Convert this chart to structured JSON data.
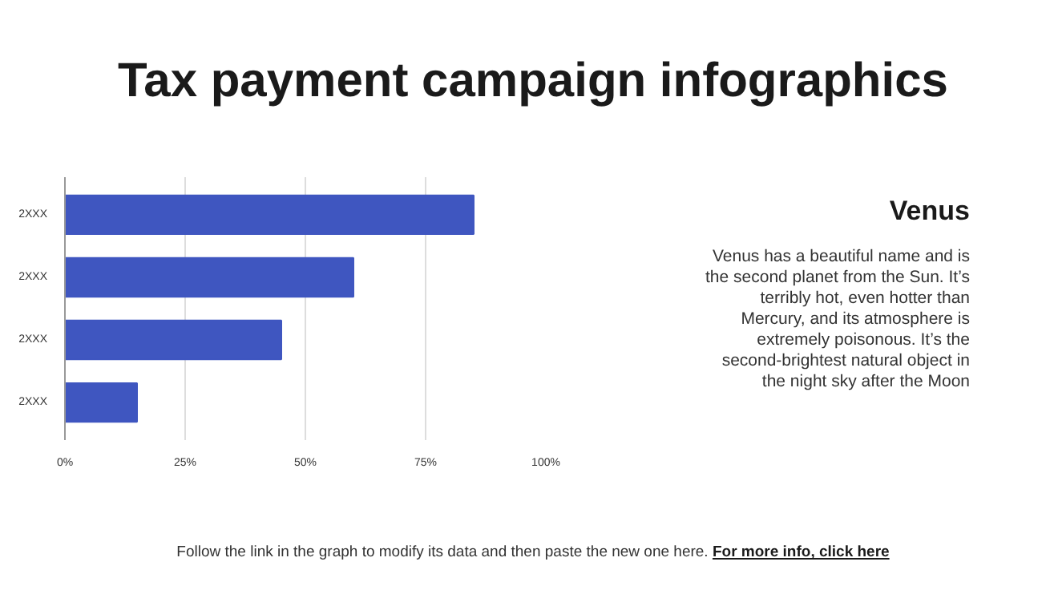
{
  "chart_data": {
    "type": "bar",
    "orientation": "horizontal",
    "title": "Tax payment campaign infographics",
    "categories": [
      "2XXX",
      "2XXX",
      "2XXX",
      "2XXX"
    ],
    "values": [
      85,
      60,
      45,
      15
    ],
    "color": "#3f56c0",
    "xlim": [
      0,
      100
    ],
    "xticks": [
      {
        "value": 0,
        "label": "0%"
      },
      {
        "value": 25,
        "label": "25%"
      },
      {
        "value": 50,
        "label": "50%"
      },
      {
        "value": 75,
        "label": "75%"
      },
      {
        "value": 100,
        "label": "100%"
      }
    ],
    "grid": "x",
    "annotations": [
      "Venus",
      "Venus has a beautiful name and is the second planet from the Sun. It’s terribly hot, even hotter than Mercury, and its atmosphere is extremely poisonous. It’s the second-brightest natural object in the night sky after the Moon",
      "Follow the link in the graph to modify its data and then paste the new one here.",
      "For more info, click here"
    ]
  }
}
